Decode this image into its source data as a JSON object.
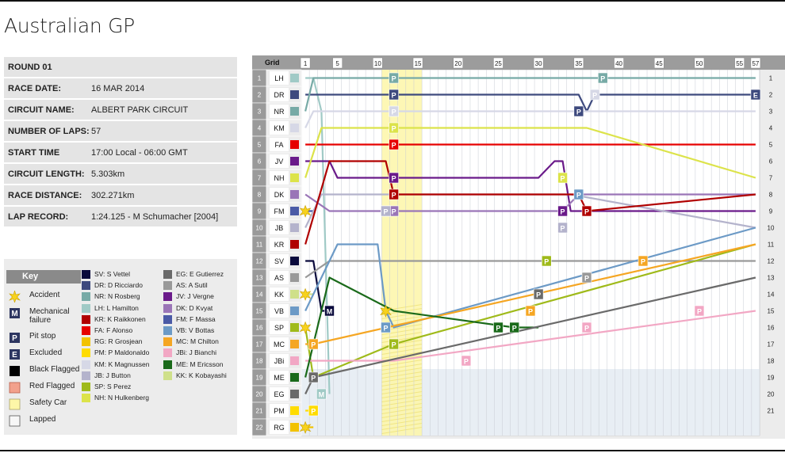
{
  "title": "Australian GP",
  "info": [
    {
      "label": "ROUND 01",
      "value": ""
    },
    {
      "label": "RACE DATE:",
      "value": "16 MAR 2014"
    },
    {
      "label": "CIRCUIT NAME:",
      "value": "ALBERT PARK CIRCUIT"
    },
    {
      "label": "NUMBER OF LAPS:",
      "value": "57"
    },
    {
      "label": "START TIME",
      "value": "17:00 Local - 06:00 GMT"
    },
    {
      "label": "CIRCUIT LENGTH:",
      "value": "5.303km"
    },
    {
      "label": "RACE DISTANCE:",
      "value": "302.271km"
    },
    {
      "label": "LAP RECORD:",
      "value": "1:24.125 - M Schumacher [2004]"
    }
  ],
  "key": {
    "title": "Key",
    "items": [
      {
        "label": "Accident",
        "icon": "accident-icon"
      },
      {
        "label": "Mechanical failure",
        "icon": "mechanical-failure-icon"
      },
      {
        "label": "Pit stop",
        "icon": "pit-stop-icon"
      },
      {
        "label": "Excluded",
        "icon": "excluded-icon"
      },
      {
        "label": "Black Flagged",
        "icon": "black-flag-icon"
      },
      {
        "label": "Red Flagged",
        "icon": "red-flag-icon"
      },
      {
        "label": "Safety Car",
        "icon": "safety-car-icon"
      },
      {
        "label": "Lapped",
        "icon": "lapped-icon"
      }
    ],
    "drivers": [
      {
        "label": "SV: S Vettel",
        "color": "#0a0a3c"
      },
      {
        "label": "DR: D Ricciardo",
        "color": "#3e4a7e"
      },
      {
        "label": "NR: N Rosberg",
        "color": "#77aaa6"
      },
      {
        "label": "LH: L Hamilton",
        "color": "#a0cac6"
      },
      {
        "label": "KR: K Raikkonen",
        "color": "#b00000"
      },
      {
        "label": "FA: F Alonso",
        "color": "#e60000"
      },
      {
        "label": "RG: R Grosjean",
        "color": "#f2c200"
      },
      {
        "label": "PM: P Maldonaldo",
        "color": "#ffdc00"
      },
      {
        "label": "KM: K Magnussen",
        "color": "#d6d8e6"
      },
      {
        "label": "JB: J Button",
        "color": "#b4b3cc"
      },
      {
        "label": "SP: S Perez",
        "color": "#9fba1a"
      },
      {
        "label": "NH: N Hulkenberg",
        "color": "#dce34a"
      },
      {
        "label": "EG: E Gutierrez",
        "color": "#6a6a6a"
      },
      {
        "label": "AS: A Sutil",
        "color": "#999999"
      },
      {
        "label": "JV: J Vergne",
        "color": "#6a1a8a"
      },
      {
        "label": "DK: D Kvyat",
        "color": "#9a75b7"
      },
      {
        "label": "FM: F Massa",
        "color": "#4a5aa6"
      },
      {
        "label": "VB: V Bottas",
        "color": "#6c9ac6"
      },
      {
        "label": "MC: M Chilton",
        "color": "#f5a623"
      },
      {
        "label": "JBi: J Bianchi",
        "color": "#f2a7c4"
      },
      {
        "label": "ME: M Ericsson",
        "color": "#1a6a1a"
      },
      {
        "label": "KK: K Kobayashi",
        "color": "#cfe08a"
      }
    ]
  },
  "chart_data": {
    "type": "line",
    "title": "",
    "xlabel": "",
    "ylabel": "Grid",
    "grid_header": "Grid",
    "x_ticks": [
      "1",
      "5",
      "10",
      "15",
      "20",
      "25",
      "30",
      "35",
      "40",
      "45",
      "50",
      "55",
      "57"
    ],
    "position_labels": [
      "1",
      "2",
      "3",
      "4",
      "5",
      "6",
      "7",
      "8",
      "9",
      "10",
      "11",
      "12",
      "13",
      "14",
      "15",
      "16",
      "17",
      "18",
      "19",
      "20",
      "21",
      "22"
    ],
    "right_labels": [
      "1",
      "2",
      "3",
      "4",
      "5",
      "6",
      "7",
      "8",
      "9",
      "10",
      "11",
      "12",
      "13",
      "14",
      "15",
      "16",
      "17",
      "18",
      "19",
      "20",
      "21"
    ],
    "grid_order": [
      "LH",
      "DR",
      "NR",
      "KM",
      "FA",
      "JV",
      "NH",
      "DK",
      "FM",
      "JB",
      "KR",
      "SV",
      "AS",
      "KK",
      "VB",
      "SP",
      "MC",
      "JBi",
      "ME",
      "EG",
      "PM",
      "RG"
    ],
    "laps": 57,
    "xlim": [
      1,
      57
    ],
    "ylim": [
      22,
      1
    ],
    "safety_car_laps": [
      11,
      15
    ],
    "lapped_region_start_lap": 1,
    "series": [
      {
        "code": "LH",
        "color": "#a0cac6",
        "points": [
          [
            1,
            1
          ],
          [
            2,
            1
          ],
          [
            3,
            3
          ],
          [
            4,
            20
          ]
        ],
        "markers": [
          {
            "lap": 3,
            "type": "mechanical-failure"
          }
        ]
      },
      {
        "code": "DR",
        "color": "#3e4a7e",
        "points": [
          [
            1,
            2
          ],
          [
            2,
            2
          ],
          [
            3,
            2
          ],
          [
            10,
            2
          ],
          [
            35,
            2
          ],
          [
            36,
            3
          ],
          [
            37,
            2
          ],
          [
            57,
            2
          ]
        ],
        "markers": [
          {
            "lap": 12,
            "type": "pit-stop",
            "pos": 2
          },
          {
            "lap": 35,
            "type": "pit-stop",
            "pos": 3
          },
          {
            "lap": 57,
            "type": "excluded",
            "pos": 2
          }
        ]
      },
      {
        "code": "NR",
        "color": "#77aaa6",
        "points": [
          [
            1,
            3
          ],
          [
            2,
            1
          ],
          [
            57,
            1
          ]
        ],
        "markers": [
          {
            "lap": 12,
            "type": "pit-stop",
            "pos": 1
          },
          {
            "lap": 38,
            "type": "pit-stop",
            "pos": 1
          }
        ]
      },
      {
        "code": "KM",
        "color": "#d6d8e6",
        "points": [
          [
            1,
            4
          ],
          [
            2,
            3
          ],
          [
            11,
            3
          ],
          [
            57,
            3
          ]
        ],
        "markers": [
          {
            "lap": 12,
            "type": "pit-stop",
            "pos": 3
          },
          {
            "lap": 37,
            "type": "pit-stop",
            "pos": 2
          }
        ]
      },
      {
        "code": "FA",
        "color": "#e60000",
        "points": [
          [
            1,
            5
          ],
          [
            2,
            5
          ],
          [
            3,
            5
          ],
          [
            57,
            5
          ]
        ],
        "markers": [
          {
            "lap": 12,
            "type": "pit-stop",
            "pos": 5
          }
        ]
      },
      {
        "code": "JV",
        "color": "#6a1a8a",
        "points": [
          [
            1,
            6
          ],
          [
            4,
            6
          ],
          [
            5,
            7
          ],
          [
            12,
            7
          ],
          [
            30,
            7
          ],
          [
            32,
            6
          ],
          [
            33,
            6
          ],
          [
            34,
            9
          ],
          [
            35,
            9
          ],
          [
            57,
            9
          ]
        ],
        "markers": [
          {
            "lap": 12,
            "type": "pit-stop",
            "pos": 7
          },
          {
            "lap": 33,
            "type": "pit-stop",
            "pos": 9
          }
        ]
      },
      {
        "code": "NH",
        "color": "#dce34a",
        "points": [
          [
            1,
            7
          ],
          [
            3,
            4
          ],
          [
            12,
            4
          ],
          [
            36,
            4
          ],
          [
            57,
            7
          ]
        ],
        "markers": [
          {
            "lap": 12,
            "type": "pit-stop",
            "pos": 4
          },
          {
            "lap": 33,
            "type": "pit-stop",
            "pos": 7
          }
        ]
      },
      {
        "code": "DK",
        "color": "#9a75b7",
        "points": [
          [
            1,
            8
          ],
          [
            4,
            9
          ],
          [
            12,
            9
          ],
          [
            33,
            9
          ],
          [
            35,
            8
          ],
          [
            57,
            8
          ]
        ],
        "markers": [
          {
            "lap": 11,
            "type": "pit-stop",
            "pos": 9
          },
          {
            "lap": 12,
            "type": "pit-stop",
            "pos": 9
          }
        ]
      },
      {
        "code": "FM",
        "color": "#4a5aa6",
        "points": [
          [
            1,
            9
          ],
          [
            2,
            9
          ]
        ],
        "markers": [
          {
            "lap": 1,
            "type": "accident",
            "pos": 9
          }
        ]
      },
      {
        "code": "JB",
        "color": "#b4b3cc",
        "points": [
          [
            1,
            10
          ],
          [
            3,
            8
          ],
          [
            11,
            8
          ],
          [
            34,
            8
          ],
          [
            57,
            10
          ]
        ],
        "markers": [
          {
            "lap": 11,
            "type": "pit-stop",
            "pos": 9
          },
          {
            "lap": 33,
            "type": "pit-stop",
            "pos": 10
          }
        ]
      },
      {
        "code": "KR",
        "color": "#b00000",
        "points": [
          [
            1,
            11
          ],
          [
            4,
            6
          ],
          [
            11,
            6
          ],
          [
            12,
            8
          ],
          [
            35,
            8
          ],
          [
            36,
            9
          ],
          [
            57,
            8
          ]
        ],
        "markers": [
          {
            "lap": 12,
            "type": "pit-stop",
            "pos": 8
          },
          {
            "lap": 36,
            "type": "pit-stop",
            "pos": 9
          }
        ]
      },
      {
        "code": "SV",
        "color": "#0a0a3c",
        "points": [
          [
            1,
            12
          ],
          [
            2,
            12
          ],
          [
            3,
            15
          ],
          [
            4,
            15
          ]
        ],
        "markers": [
          {
            "lap": 4,
            "type": "mechanical-failure",
            "pos": 15
          }
        ]
      },
      {
        "code": "AS",
        "color": "#999999",
        "points": [
          [
            1,
            13
          ],
          [
            4,
            12
          ],
          [
            57,
            12
          ]
        ],
        "markers": [
          {
            "lap": 36,
            "type": "pit-stop",
            "pos": 13
          }
        ]
      },
      {
        "code": "KK",
        "color": "#cfe08a",
        "points": [
          [
            1,
            14
          ],
          [
            2,
            14
          ]
        ],
        "markers": [
          {
            "lap": 1,
            "type": "accident",
            "pos": 14
          }
        ]
      },
      {
        "code": "VB",
        "color": "#6c9ac6",
        "points": [
          [
            1,
            15
          ],
          [
            5,
            11
          ],
          [
            10,
            11
          ],
          [
            11,
            15
          ],
          [
            12,
            16
          ],
          [
            57,
            10
          ]
        ],
        "markers": [
          {
            "lap": 11,
            "type": "accident",
            "pos": 15
          },
          {
            "lap": 11,
            "type": "pit-stop",
            "pos": 16
          },
          {
            "lap": 35,
            "type": "pit-stop",
            "pos": 8
          }
        ]
      },
      {
        "code": "SP",
        "color": "#9fba1a",
        "points": [
          [
            1,
            16
          ],
          [
            2,
            19
          ],
          [
            12,
            17
          ],
          [
            57,
            11
          ]
        ],
        "markers": [
          {
            "lap": 1,
            "type": "accident",
            "pos": 16
          },
          {
            "lap": 12,
            "type": "pit-stop",
            "pos": 17
          },
          {
            "lap": 31,
            "type": "pit-stop",
            "pos": 12
          }
        ]
      },
      {
        "code": "MC",
        "color": "#f5a623",
        "points": [
          [
            1,
            17
          ],
          [
            2,
            17
          ],
          [
            57,
            11
          ]
        ],
        "markers": [
          {
            "lap": 2,
            "type": "pit-stop",
            "pos": 17
          },
          {
            "lap": 29,
            "type": "pit-stop",
            "pos": 15
          },
          {
            "lap": 43,
            "type": "pit-stop",
            "pos": 12
          }
        ]
      },
      {
        "code": "JBi",
        "color": "#f2a7c4",
        "points": [
          [
            1,
            18
          ],
          [
            2,
            18
          ],
          [
            12,
            18
          ],
          [
            57,
            15
          ]
        ],
        "markers": [
          {
            "lap": 21,
            "type": "pit-stop",
            "pos": 18
          },
          {
            "lap": 36,
            "type": "pit-stop",
            "pos": 16
          },
          {
            "lap": 50,
            "type": "pit-stop",
            "pos": 15
          }
        ]
      },
      {
        "code": "ME",
        "color": "#1a6a1a",
        "points": [
          [
            1,
            19
          ],
          [
            4,
            13
          ],
          [
            12,
            15
          ],
          [
            27,
            16
          ],
          [
            30,
            16
          ]
        ],
        "markers": [
          {
            "lap": 25,
            "type": "pit-stop",
            "pos": 16
          },
          {
            "lap": 27,
            "type": "pit-stop",
            "pos": 16
          }
        ]
      },
      {
        "code": "EG",
        "color": "#6a6a6a",
        "points": [
          [
            1,
            20
          ],
          [
            2,
            19
          ],
          [
            57,
            13
          ]
        ],
        "markers": [
          {
            "lap": 2,
            "type": "pit-stop",
            "pos": 19
          },
          {
            "lap": 30,
            "type": "pit-stop",
            "pos": 14
          }
        ]
      },
      {
        "code": "PM",
        "color": "#ffdc00",
        "points": [
          [
            1,
            21
          ],
          [
            2,
            21
          ]
        ],
        "markers": [
          {
            "lap": 2,
            "type": "pit-stop",
            "pos": 21
          }
        ]
      },
      {
        "code": "RG",
        "color": "#f2c200",
        "points": [
          [
            1,
            22
          ],
          [
            2,
            22
          ]
        ],
        "markers": [
          {
            "lap": 1,
            "type": "accident",
            "pos": 22
          }
        ]
      }
    ]
  }
}
